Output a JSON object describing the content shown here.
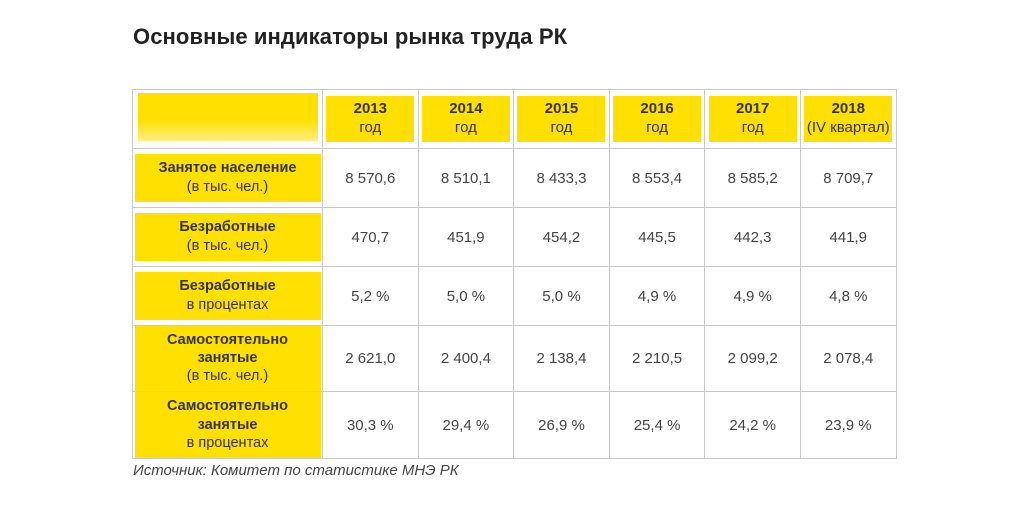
{
  "title": "Основные индикаторы рынка труда РК",
  "source": "Источник: Комитет по статистике МНЭ РК",
  "colors": {
    "highlight": "#ffe000",
    "border": "#c9c9c9"
  },
  "columns": [
    {
      "year": "2013",
      "sub": "год"
    },
    {
      "year": "2014",
      "sub": "год"
    },
    {
      "year": "2015",
      "sub": "год"
    },
    {
      "year": "2016",
      "sub": "год"
    },
    {
      "year": "2017",
      "sub": "год"
    },
    {
      "year": "2018",
      "sub": "(IV квартал)"
    }
  ],
  "rows": [
    {
      "label": "Занятое население",
      "unit": "(в тыс. чел.)",
      "values": [
        "8 570,6",
        "8 510,1",
        "8 433,3",
        "8 553,4",
        "8 585,2",
        "8 709,7"
      ]
    },
    {
      "label": "Безработные",
      "unit": "(в тыс. чел.)",
      "values": [
        "470,7",
        "451,9",
        "454,2",
        "445,5",
        "442,3",
        "441,9"
      ]
    },
    {
      "label": "Безработные",
      "unit": "в процентах",
      "values": [
        "5,2 %",
        "5,0 %",
        "5,0 %",
        "4,9 %",
        "4,9 %",
        "4,8 %"
      ]
    },
    {
      "label": "Самостоятельно занятые",
      "unit": "(в тыс. чел.)",
      "values": [
        "2 621,0",
        "2 400,4",
        "2 138,4",
        "2 210,5",
        "2 099,2",
        "2 078,4"
      ]
    },
    {
      "label": "Самостоятельно занятые",
      "unit": "в процентах",
      "values": [
        "30,3 %",
        "29,4 %",
        "26,9 %",
        "25,4 %",
        "24,2 %",
        "23,9 %"
      ]
    }
  ]
}
